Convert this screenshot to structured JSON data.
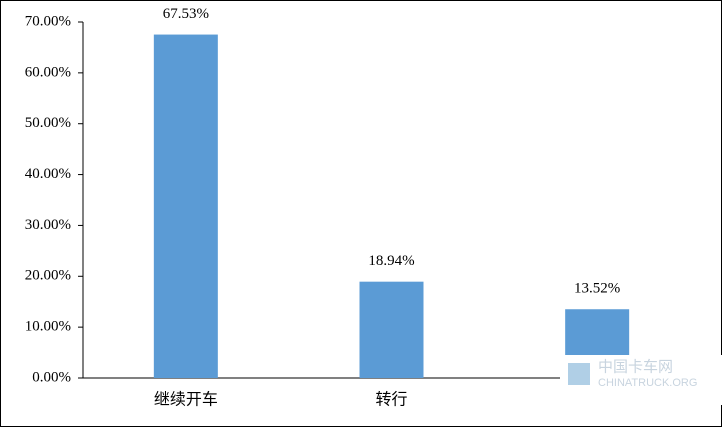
{
  "chart_data": {
    "type": "bar",
    "categories": [
      "继续开车",
      "转行",
      null
    ],
    "values": [
      67.53,
      18.94,
      13.52
    ],
    "value_labels": [
      "67.53%",
      "18.94%",
      "13.52%"
    ],
    "color": "#5b9bd5",
    "ylim": [
      0,
      70
    ],
    "yticks": [
      {
        "value": 0,
        "label": "0.00%"
      },
      {
        "value": 10,
        "label": "10.00%"
      },
      {
        "value": 20,
        "label": "20.00%"
      },
      {
        "value": 30,
        "label": "30.00%"
      },
      {
        "value": 40,
        "label": "40.00%"
      },
      {
        "value": 50,
        "label": "50.00%"
      },
      {
        "value": 60,
        "label": "60.00%"
      },
      {
        "value": 70,
        "label": "70.00%"
      }
    ],
    "grid": false,
    "watermark": [
      "中国卡车网",
      "CHINATRUCK.ORG"
    ]
  }
}
